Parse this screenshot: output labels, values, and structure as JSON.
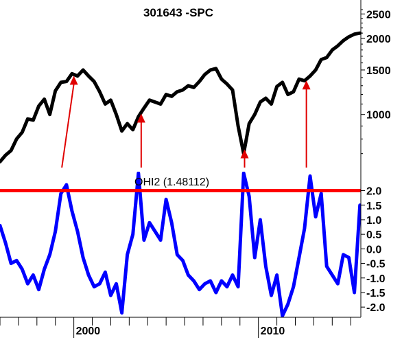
{
  "chart_data": [
    {
      "panel": "upper",
      "type": "line",
      "title": "301643 -SPC",
      "scale": "log",
      "ylim": [
        640,
        2700
      ],
      "y_ticks": [
        1000,
        1500,
        2000,
        2500
      ],
      "y_tick_labels": [
        "1000",
        "1500",
        "2000",
        "2500"
      ],
      "xlim": [
        1996.0,
        2015.55
      ],
      "line_color": "#000000",
      "series": [
        {
          "x": [
            1996.0,
            1996.3,
            1996.6,
            1996.9,
            1997.2,
            1997.5,
            1997.8,
            1998.1,
            1998.4,
            1998.7,
            1999.0,
            1999.3,
            1999.6,
            1999.9,
            2000.2,
            2000.5,
            2000.8,
            2001.1,
            2001.4,
            2001.7,
            2002.0,
            2002.3,
            2002.6,
            2002.9,
            2003.2,
            2003.5,
            2003.8,
            2004.1,
            2004.4,
            2004.7,
            2005.0,
            2005.3,
            2005.6,
            2005.9,
            2006.2,
            2006.5,
            2006.8,
            2007.1,
            2007.4,
            2007.7,
            2008.0,
            2008.3,
            2008.6,
            2008.9,
            2009.2,
            2009.5,
            2009.8,
            2010.1,
            2010.4,
            2010.7,
            2011.0,
            2011.3,
            2011.6,
            2011.9,
            2012.2,
            2012.5,
            2012.8,
            2013.1,
            2013.4,
            2013.7,
            2014.0,
            2014.3,
            2014.6,
            2014.9,
            2015.2,
            2015.5
          ],
          "values": [
            650,
            690,
            720,
            800,
            850,
            960,
            950,
            1080,
            1150,
            1000,
            1240,
            1340,
            1350,
            1450,
            1420,
            1500,
            1420,
            1350,
            1230,
            1100,
            1140,
            1000,
            860,
            920,
            870,
            980,
            1060,
            1140,
            1120,
            1100,
            1200,
            1180,
            1230,
            1250,
            1300,
            1280,
            1350,
            1440,
            1500,
            1520,
            1380,
            1320,
            1250,
            900,
            700,
            920,
            1000,
            1120,
            1160,
            1100,
            1290,
            1340,
            1200,
            1230,
            1380,
            1360,
            1420,
            1500,
            1650,
            1680,
            1800,
            1870,
            1960,
            2030,
            2080,
            2100
          ]
        }
      ],
      "annotations": {
        "arrow_color": "#e00000",
        "arrows": [
          {
            "from_x": 1999.35,
            "to_x": 2000.0
          },
          {
            "from_x": 2003.65,
            "to_x": 2003.65
          },
          {
            "from_x": 2009.25,
            "to_x": 2009.25
          },
          {
            "from_x": 2012.6,
            "to_x": 2012.6
          }
        ]
      }
    },
    {
      "panel": "lower",
      "type": "line",
      "legend": "OHI2 (1.48112)",
      "ylim": [
        -2.35,
        2.65
      ],
      "y_ticks": [
        -2.0,
        -1.5,
        -1.0,
        -0.5,
        0.0,
        0.5,
        1.0,
        1.5,
        2.0
      ],
      "y_tick_labels": [
        "-2.0",
        "-1.5",
        "-1.0",
        "-0.5",
        "0.0",
        "0.5",
        "1.0",
        "1.5",
        "2.0"
      ],
      "xlim": [
        1996.0,
        2015.55
      ],
      "x_ticks": [
        2000,
        2010
      ],
      "x_tick_labels": [
        "2000",
        "2010"
      ],
      "threshold": 2.0,
      "threshold_color": "#ff0000",
      "line_color": "#0000ff",
      "series": [
        {
          "x": [
            1996.0,
            1996.3,
            1996.6,
            1996.9,
            1997.2,
            1997.5,
            1997.8,
            1998.1,
            1998.4,
            1998.7,
            1999.0,
            1999.3,
            1999.6,
            1999.9,
            2000.2,
            2000.5,
            2000.8,
            2001.1,
            2001.4,
            2001.7,
            2002.0,
            2002.3,
            2002.6,
            2002.9,
            2003.2,
            2003.5,
            2003.8,
            2004.1,
            2004.4,
            2004.7,
            2005.0,
            2005.3,
            2005.6,
            2005.9,
            2006.2,
            2006.5,
            2006.8,
            2007.1,
            2007.4,
            2007.7,
            2008.0,
            2008.3,
            2008.6,
            2008.9,
            2009.2,
            2009.5,
            2009.8,
            2010.1,
            2010.4,
            2010.7,
            2011.0,
            2011.3,
            2011.6,
            2011.9,
            2012.2,
            2012.5,
            2012.8,
            2013.1,
            2013.4,
            2013.7,
            2014.0,
            2014.3,
            2014.6,
            2014.9,
            2015.2,
            2015.5
          ],
          "values": [
            0.8,
            0.2,
            -0.5,
            -0.4,
            -0.7,
            -1.2,
            -0.9,
            -1.4,
            -0.7,
            -0.2,
            0.6,
            1.9,
            2.2,
            1.3,
            0.6,
            -0.3,
            -0.9,
            -1.3,
            -1.2,
            -0.8,
            -1.6,
            -1.2,
            -2.2,
            -0.2,
            0.5,
            2.6,
            0.3,
            0.9,
            0.6,
            0.3,
            1.7,
            0.9,
            -0.2,
            -0.4,
            -0.9,
            -1.1,
            -1.4,
            -1.2,
            -1.1,
            -1.5,
            -1.1,
            -1.3,
            -0.9,
            -1.3,
            2.6,
            1.8,
            -0.3,
            1.0,
            -0.6,
            -1.6,
            -0.9,
            -2.3,
            -1.9,
            -1.3,
            -0.3,
            0.7,
            2.5,
            1.1,
            1.9,
            -0.6,
            -0.9,
            -1.2,
            -0.2,
            -0.3,
            -1.5,
            1.5
          ]
        }
      ]
    }
  ]
}
